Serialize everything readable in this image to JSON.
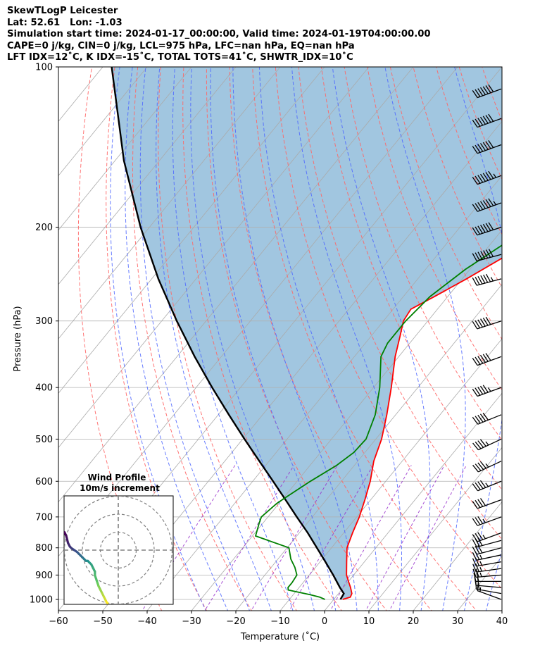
{
  "header": {
    "line1": "SkewTLogP Leicester",
    "line2": "Lat: 52.61   Lon: -1.03",
    "line3": "Simulation start time: 2024-01-17_00:00:00, Valid time: 2024-01-19T04:00:00.00",
    "line4": "CAPE=0 j/kg, CIN=0 j/kg, LCL=975 hPa, LFC=nan hPa, EQ=nan hPa",
    "line5": "LFT IDX=12˚C, K IDX=-15˚C, TOTAL TOTS=41˚C, SHWTR_IDX=10˚C"
  },
  "chart_data": {
    "type": "line",
    "subtype": "skew-T log-P diagram",
    "xlabel": "Temperature (˚C)",
    "ylabel": "Pressure (hPa)",
    "xlim": [
      -60,
      40
    ],
    "ylim_hpa": [
      1050,
      100
    ],
    "y_scale": "log",
    "xticks": [
      -60,
      -50,
      -40,
      -30,
      -20,
      -10,
      0,
      10,
      20,
      30,
      40
    ],
    "xtick_labels": [
      "−60",
      "−50",
      "−40",
      "−30",
      "−20",
      "−10",
      "0",
      "10",
      "20",
      "30",
      "40"
    ],
    "yticks": [
      1000,
      900,
      800,
      700,
      600,
      500,
      400,
      300,
      200,
      100
    ],
    "ytick_labels": [
      "1000",
      "900",
      "800",
      "700",
      "600",
      "500",
      "400",
      "300",
      "200",
      "100"
    ],
    "grid": true,
    "colors": {
      "temperature": "#ff0000",
      "dewpoint": "#008000",
      "parcel": "#000000",
      "cape_shading": "#1f77b4",
      "dry_adiabat": "#ff6666",
      "moist_adiabat": "#4d66ff",
      "mixing_ratio": "#9933cc",
      "isotherm": "#aaaaaa"
    },
    "series": [
      {
        "role": "temperature",
        "pressure": [
          1000,
          990,
          975,
          950,
          925,
          900,
          850,
          800,
          750,
          700,
          650,
          600,
          550,
          500,
          450,
          400,
          350,
          320,
          300,
          285,
          270,
          250,
          220,
          200,
          190,
          170,
          150,
          135,
          120,
          110,
          100
        ],
        "values": [
          2,
          3.3,
          3,
          1.6,
          0,
          -1.6,
          -4,
          -6.5,
          -8,
          -9.4,
          -11.3,
          -13.5,
          -16.4,
          -18.7,
          -22,
          -26,
          -30.8,
          -33.5,
          -35.5,
          -36,
          -33,
          -29,
          -23,
          -20,
          -16,
          -11,
          -7,
          -5,
          -1.5,
          1.5,
          5
        ]
      },
      {
        "role": "dewpoint",
        "pressure": [
          1000,
          990,
          980,
          960,
          950,
          930,
          900,
          870,
          840,
          800,
          760,
          720,
          700,
          660,
          640,
          600,
          560,
          530,
          500,
          450,
          400,
          350,
          330,
          300,
          270,
          240,
          215,
          200,
          185,
          170,
          150,
          130,
          115,
          100
        ],
        "values": [
          -2,
          -3.6,
          -6.2,
          -12,
          -12.5,
          -12.5,
          -12.8,
          -14.7,
          -17.1,
          -19.6,
          -29.3,
          -30.8,
          -31.5,
          -30.5,
          -29.4,
          -27,
          -24,
          -22.5,
          -22.2,
          -24.6,
          -28.6,
          -34,
          -35,
          -35,
          -34,
          -31,
          -27,
          -28.5,
          -30.5,
          -26,
          -17,
          -9,
          -1.5,
          8
        ]
      },
      {
        "role": "parcel",
        "pressure": [
          1000,
          975,
          950,
          900,
          850,
          800,
          750,
          700,
          650,
          600,
          550,
          500,
          450,
          400,
          350,
          300,
          250,
          200,
          150,
          100
        ],
        "values": [
          1.5,
          1.2,
          -0.8,
          -4.6,
          -8.8,
          -13.3,
          -18.1,
          -23.5,
          -29.2,
          -35.4,
          -42.2,
          -49.6,
          -57.6,
          -66.4,
          -76,
          -86.6,
          -98.5,
          -112,
          -128,
          -148
        ]
      }
    ],
    "wind_barbs": {
      "pressure": [
        1000,
        975,
        950,
        925,
        900,
        875,
        850,
        825,
        800,
        775,
        750,
        700,
        650,
        600,
        550,
        500,
        450,
        400,
        350,
        300,
        250,
        225,
        200,
        180,
        160,
        140,
        125,
        110
      ],
      "direction_deg": [
        290,
        280,
        275,
        270,
        265,
        262,
        260,
        258,
        255,
        255,
        250,
        250,
        250,
        248,
        245,
        245,
        248,
        250,
        250,
        252,
        255,
        255,
        252,
        250,
        250,
        250,
        250,
        250
      ],
      "speed_kt": [
        15,
        15,
        20,
        20,
        25,
        25,
        25,
        25,
        30,
        30,
        35,
        35,
        40,
        45,
        45,
        45,
        50,
        55,
        60,
        60,
        65,
        70,
        70,
        75,
        75,
        70,
        70,
        70
      ]
    },
    "inset": {
      "title_line1": "Wind Profile",
      "title_line2": "10m/s increment",
      "type": "hodograph",
      "ring_interval_ms": 10,
      "u_ms": [
        -6,
        -6.5,
        -7,
        -8,
        -9,
        -10,
        -11,
        -11.5,
        -12,
        -13,
        -13,
        -14,
        -15,
        -16,
        -17,
        -18,
        -19,
        -20,
        -21,
        -22,
        -23,
        -24.5,
        -26,
        -27,
        -28,
        -28.5,
        -29,
        -30
      ],
      "v_ms": [
        -29.5,
        -29,
        -28,
        -26,
        -24,
        -22,
        -20,
        -18.5,
        -17,
        -14,
        -12,
        -10,
        -8,
        -7,
        -6,
        -6,
        -5,
        -4,
        -3,
        -2,
        -1,
        0,
        1,
        2,
        4,
        6,
        8,
        10
      ]
    }
  }
}
